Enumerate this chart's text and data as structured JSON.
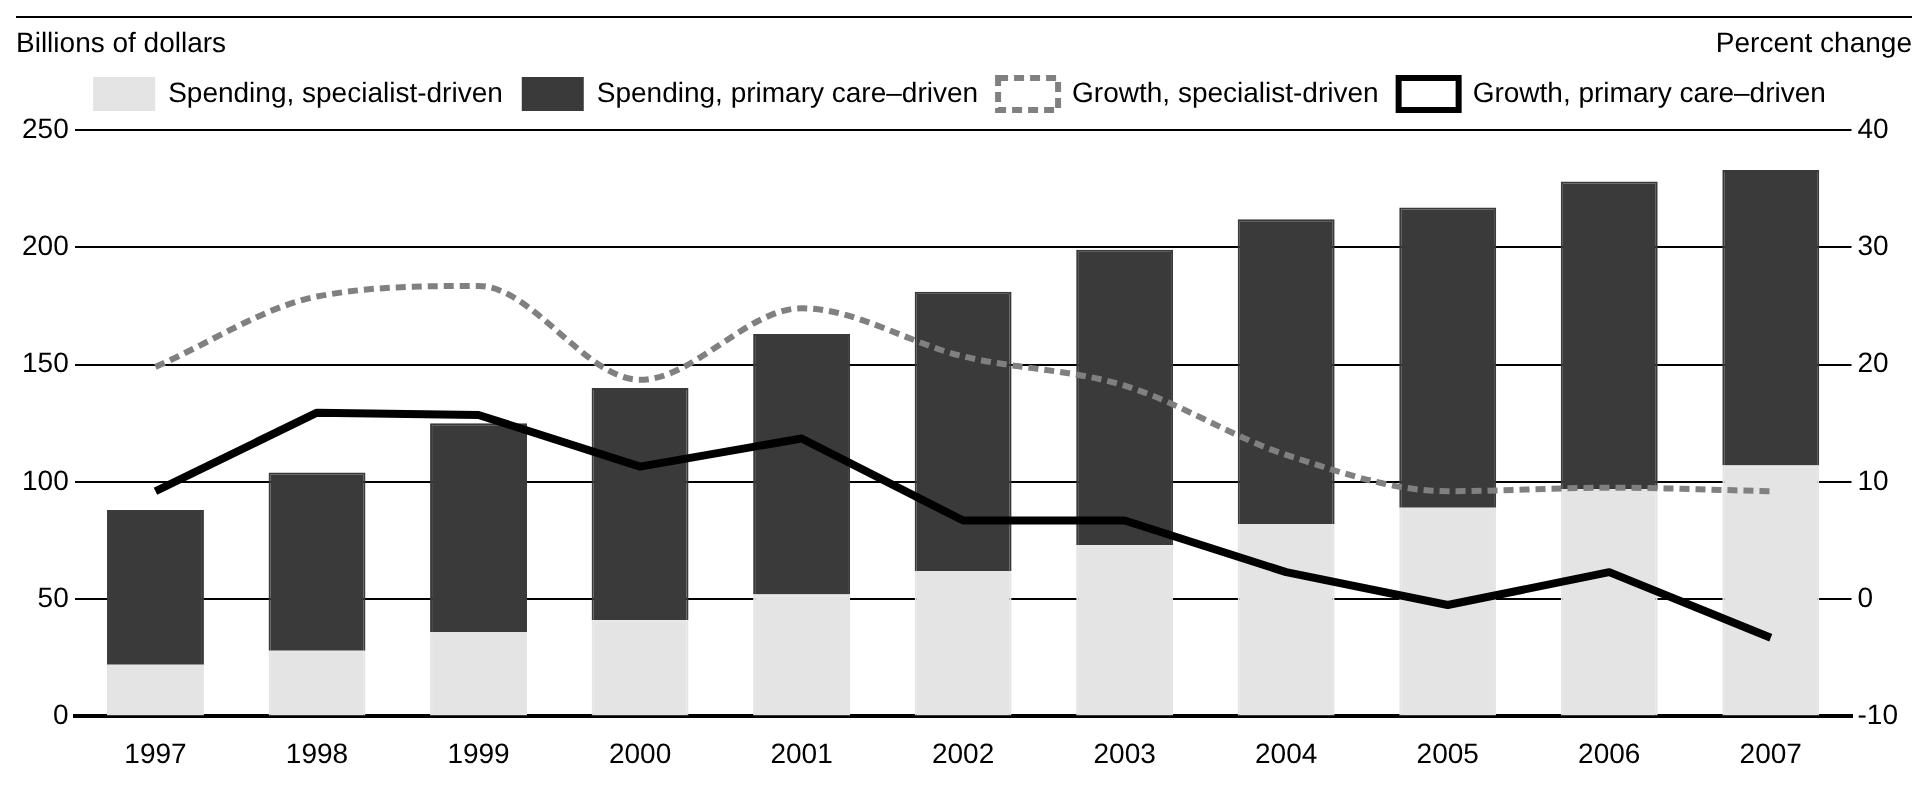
{
  "chart_data": {
    "type": "bar",
    "stacked": true,
    "ylabel": "Billions of dollars",
    "y2label": "Percent change",
    "categories": [
      "1997",
      "1998",
      "1999",
      "2000",
      "2001",
      "2002",
      "2003",
      "2004",
      "2005",
      "2006",
      "2007"
    ],
    "series": [
      {
        "name": "Spending, specialist-driven",
        "color": "#e4e4e4",
        "values": [
          22,
          28,
          36,
          41,
          52,
          62,
          73,
          82,
          89,
          97,
          107
        ]
      },
      {
        "name": "Spending, primary care–driven",
        "color": "#3a3a3a",
        "values": [
          66,
          76,
          89,
          99,
          111,
          119,
          126,
          130,
          128,
          131,
          126
        ]
      },
      {
        "name": "Growth, specialist-driven",
        "type": "line",
        "axis": "y2",
        "line_style": "dashed",
        "color": "#808080",
        "values": [
          19.8,
          25.8,
          26.7,
          18.7,
          24.8,
          20.7,
          18.2,
          12.3,
          9.2,
          9.5,
          9.2
        ]
      },
      {
        "name": "Growth, primary care–driven",
        "type": "line",
        "axis": "y2",
        "line_style": "solid",
        "color": "#000000",
        "values": [
          9.2,
          15.9,
          15.7,
          11.3,
          13.7,
          6.7,
          6.7,
          2.3,
          -0.5,
          2.3,
          -3.3
        ]
      }
    ],
    "ylim": [
      0,
      250
    ],
    "yticks": [
      0,
      50,
      100,
      150,
      200,
      250
    ],
    "y2lim": [
      -10,
      40
    ],
    "y2ticks": [
      -10,
      0,
      10,
      20,
      30,
      40
    ],
    "grid": "y",
    "legend": "top",
    "marker": "none"
  }
}
